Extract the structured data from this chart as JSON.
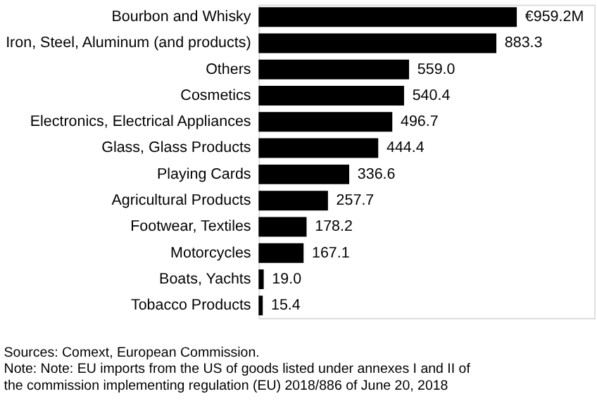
{
  "chart_data": {
    "type": "bar",
    "orientation": "horizontal",
    "categories": [
      "Bourbon and Whisky",
      "Iron, Steel, Aluminum (and products)",
      "Others",
      "Cosmetics",
      "Electronics, Electrical Appliances",
      "Glass, Glass Products",
      "Playing Cards",
      "Agricultural Products",
      "Footwear, Textiles",
      "Motorcycles",
      "Boats, Yachts",
      "Tobacco Products"
    ],
    "values": [
      959.2,
      883.3,
      559.0,
      540.4,
      496.7,
      444.4,
      336.6,
      257.7,
      178.2,
      167.1,
      19.0,
      15.4
    ],
    "value_labels": [
      "€959.2M",
      "883.3",
      "559.0",
      "540.4",
      "496.7",
      "444.4",
      "336.6",
      "257.7",
      "178.2",
      "167.1",
      "19.0",
      "15.4"
    ],
    "color": "#000000",
    "annotations": [
      "Sources: Comext, European Commission.",
      "Note: Note: EU imports from the US of goods listed under annexes I and II of",
      "the commission implementing regulation (EU) 2018/886 of June 20, 2018"
    ],
    "grid": false
  }
}
